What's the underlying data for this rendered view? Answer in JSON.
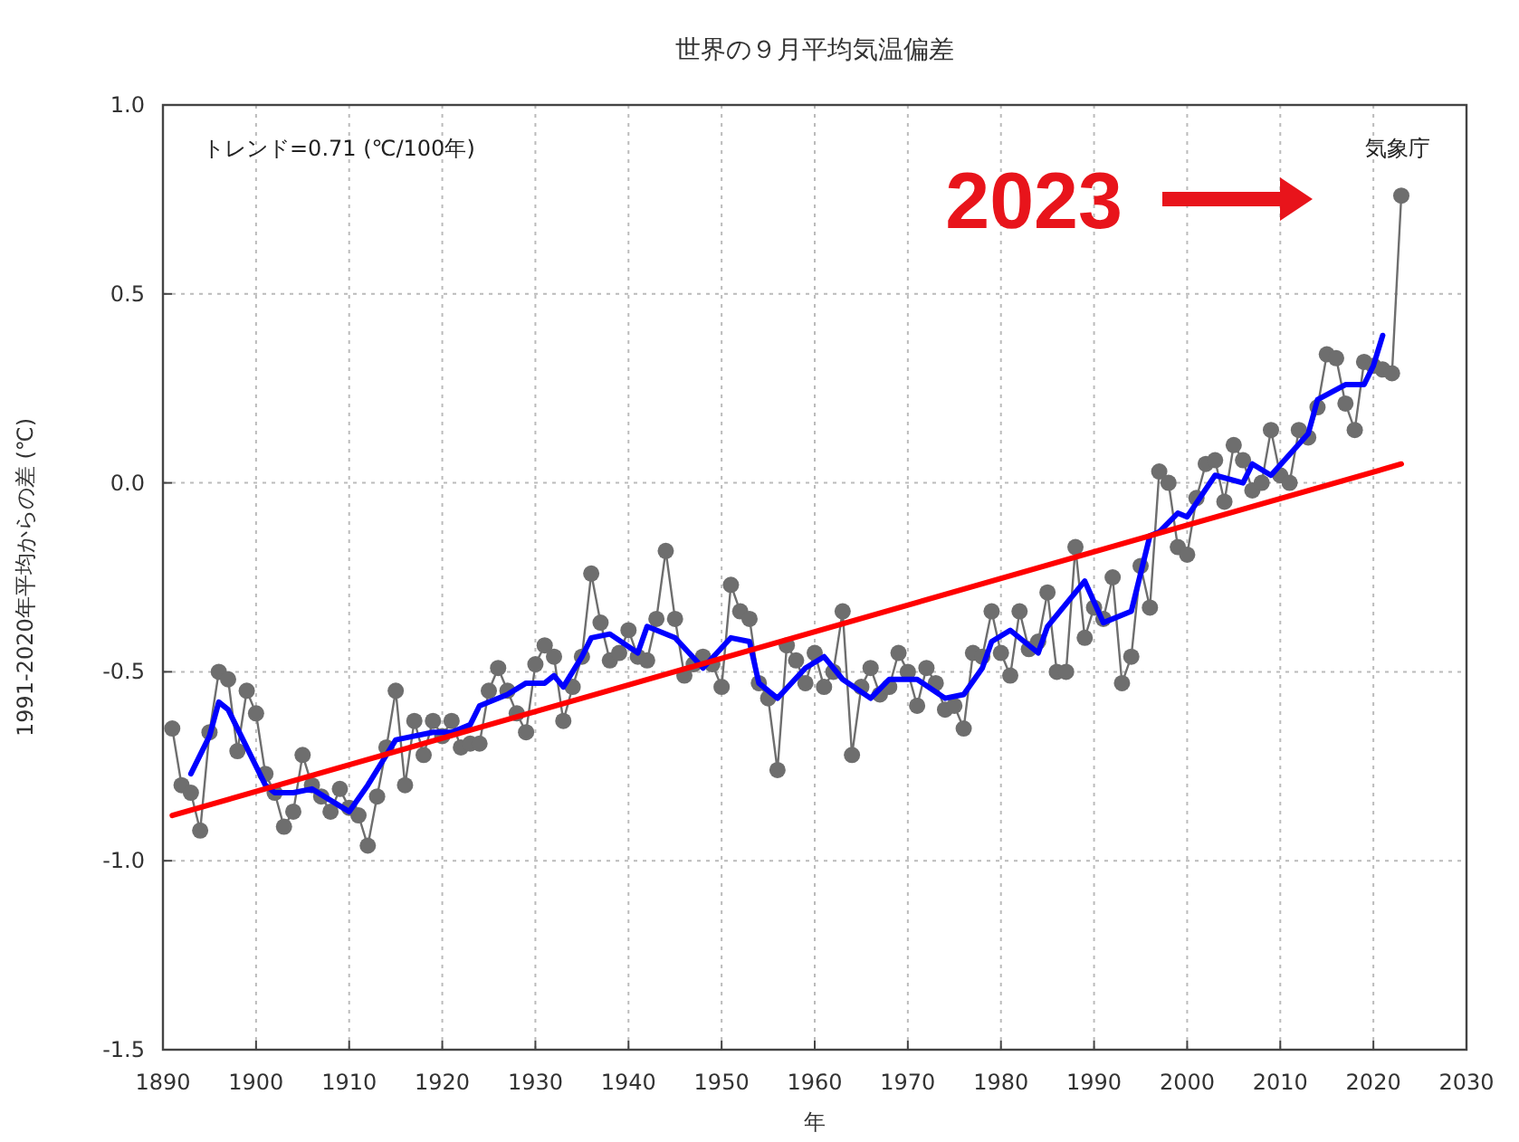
{
  "chart_data": {
    "type": "line",
    "title": "世界の９月平均気温偏差",
    "xlabel": "年",
    "ylabel": "1991-2020年平均からの差 (℃)",
    "annotations": [
      "トレンド=0.71 (℃/100年)",
      "気象庁",
      "2023"
    ],
    "xlim": [
      1890,
      2030
    ],
    "xticks": [
      1890,
      1900,
      1910,
      1920,
      1930,
      1940,
      1950,
      1960,
      1970,
      1980,
      1990,
      2000,
      2010,
      2020,
      2030
    ],
    "ylim": [
      -1.5,
      1.0
    ],
    "yticks": [
      {
        "value": -1.5,
        "label": "-1.5"
      },
      {
        "value": -1.0,
        "label": "-1.0"
      },
      {
        "value": -0.5,
        "label": "-0.5"
      },
      {
        "value": 0,
        "label": "0.0"
      },
      {
        "value": 0.5,
        "label": "0.5"
      },
      {
        "value": 1.0,
        "label": "1.0"
      }
    ],
    "grid": true,
    "series": [
      {
        "color": "#6e6e6e",
        "marker": "circle",
        "line_style": "solid",
        "x": [
          1891,
          1892,
          1893,
          1894,
          1895,
          1896,
          1897,
          1898,
          1899,
          1900,
          1901,
          1902,
          1903,
          1904,
          1905,
          1906,
          1907,
          1908,
          1909,
          1910,
          1911,
          1912,
          1913,
          1914,
          1915,
          1916,
          1917,
          1918,
          1919,
          1920,
          1921,
          1922,
          1923,
          1924,
          1925,
          1926,
          1927,
          1928,
          1929,
          1930,
          1931,
          1932,
          1933,
          1934,
          1935,
          1936,
          1937,
          1938,
          1939,
          1940,
          1941,
          1942,
          1943,
          1944,
          1945,
          1946,
          1947,
          1948,
          1949,
          1950,
          1951,
          1952,
          1953,
          1954,
          1955,
          1956,
          1957,
          1958,
          1959,
          1960,
          1961,
          1962,
          1963,
          1964,
          1965,
          1966,
          1967,
          1968,
          1969,
          1970,
          1971,
          1972,
          1973,
          1974,
          1975,
          1976,
          1977,
          1978,
          1979,
          1980,
          1981,
          1982,
          1983,
          1984,
          1985,
          1986,
          1987,
          1988,
          1989,
          1990,
          1991,
          1992,
          1993,
          1994,
          1995,
          1996,
          1997,
          1998,
          1999,
          2000,
          2001,
          2002,
          2003,
          2004,
          2005,
          2006,
          2007,
          2008,
          2009,
          2010,
          2011,
          2012,
          2013,
          2014,
          2015,
          2016,
          2017,
          2018,
          2019,
          2020,
          2021,
          2022,
          2023
        ],
        "values": [
          -0.65,
          -0.8,
          -0.82,
          -0.92,
          -0.66,
          -0.5,
          -0.52,
          -0.71,
          -0.55,
          -0.61,
          -0.77,
          -0.82,
          -0.91,
          -0.87,
          -0.72,
          -0.8,
          -0.83,
          -0.87,
          -0.81,
          -0.86,
          -0.88,
          -0.96,
          -0.83,
          -0.7,
          -0.55,
          -0.8,
          -0.63,
          -0.72,
          -0.63,
          -0.67,
          -0.63,
          -0.7,
          -0.69,
          -0.69,
          -0.55,
          -0.49,
          -0.55,
          -0.61,
          -0.66,
          -0.48,
          -0.43,
          -0.46,
          -0.63,
          -0.54,
          -0.46,
          -0.24,
          -0.37,
          -0.47,
          -0.45,
          -0.39,
          -0.46,
          -0.47,
          -0.36,
          -0.18,
          -0.36,
          -0.51,
          -0.48,
          -0.46,
          -0.48,
          -0.54,
          -0.27,
          -0.34,
          -0.36,
          -0.53,
          -0.57,
          -0.76,
          -0.43,
          -0.47,
          -0.53,
          -0.45,
          -0.54,
          -0.5,
          -0.34,
          -0.72,
          -0.54,
          -0.49,
          -0.56,
          -0.54,
          -0.45,
          -0.5,
          -0.59,
          -0.49,
          -0.53,
          -0.6,
          -0.59,
          -0.65,
          -0.45,
          -0.46,
          -0.34,
          -0.45,
          -0.51,
          -0.34,
          -0.44,
          -0.42,
          -0.29,
          -0.5,
          -0.5,
          -0.17,
          -0.41,
          -0.33,
          -0.36,
          -0.25,
          -0.53,
          -0.46,
          -0.22,
          -0.33,
          0.03,
          0.0,
          -0.17,
          -0.19,
          -0.04,
          0.05,
          0.06,
          -0.05,
          0.1,
          0.06,
          -0.02,
          0.0,
          0.14,
          0.02,
          0.0,
          0.14,
          0.12,
          0.2,
          0.34,
          0.33,
          0.21,
          0.14,
          0.32,
          0.31,
          0.3,
          0.29,
          0.76
        ]
      },
      {
        "color": "#0000ff",
        "marker": "none",
        "line_style": "solid",
        "x": [
          1893,
          1895,
          1896,
          1897,
          1901,
          1902,
          1904,
          1906,
          1908,
          1910,
          1912,
          1914,
          1915,
          1917,
          1919,
          1921,
          1923,
          1924,
          1927,
          1929,
          1931,
          1932,
          1933,
          1935,
          1936,
          1938,
          1941,
          1942,
          1945,
          1948,
          1951,
          1953,
          1954,
          1956,
          1959,
          1961,
          1963,
          1966,
          1968,
          1971,
          1974,
          1976,
          1978,
          1979,
          1981,
          1984,
          1985,
          1989,
          1991,
          1994,
          1996,
          1997,
          1999,
          2000,
          2003,
          2006,
          2007,
          2009,
          2013,
          2014,
          2017,
          2019,
          2020,
          2021
        ],
        "values": [
          -0.77,
          -0.67,
          -0.58,
          -0.6,
          -0.8,
          -0.82,
          -0.82,
          -0.81,
          -0.84,
          -0.87,
          -0.8,
          -0.72,
          -0.68,
          -0.67,
          -0.66,
          -0.66,
          -0.64,
          -0.59,
          -0.56,
          -0.53,
          -0.53,
          -0.51,
          -0.54,
          -0.46,
          -0.41,
          -0.4,
          -0.45,
          -0.38,
          -0.41,
          -0.49,
          -0.41,
          -0.42,
          -0.53,
          -0.57,
          -0.49,
          -0.46,
          -0.52,
          -0.57,
          -0.52,
          -0.52,
          -0.57,
          -0.56,
          -0.49,
          -0.42,
          -0.39,
          -0.45,
          -0.38,
          -0.26,
          -0.37,
          -0.34,
          -0.14,
          -0.13,
          -0.08,
          -0.09,
          0.02,
          0.0,
          0.05,
          0.02,
          0.13,
          0.22,
          0.26,
          0.26,
          0.31,
          0.39
        ]
      },
      {
        "color": "#ff0000",
        "marker": "none",
        "line_style": "solid",
        "x": [
          1891,
          2023
        ],
        "values": [
          -0.88,
          0.05
        ]
      }
    ]
  }
}
